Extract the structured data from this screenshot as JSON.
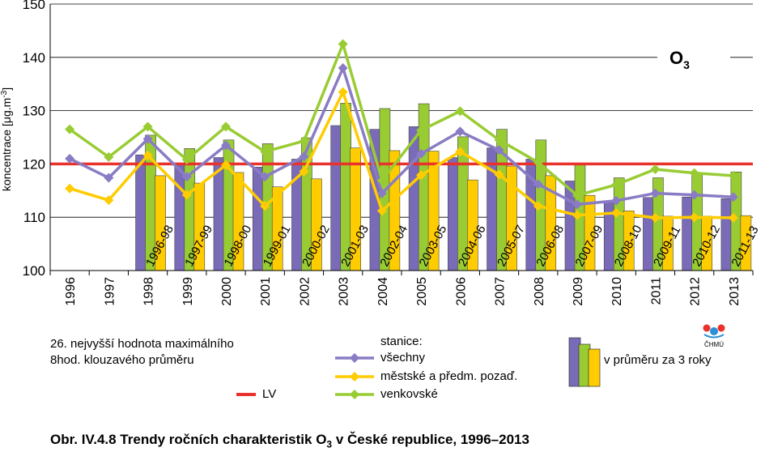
{
  "chart_data": {
    "type": "bar+line",
    "title": "O",
    "title_subscript": "3",
    "ylabel": "koncentrace [μg.m-3]",
    "ylabel_main": "koncentrace [μg.m",
    "ylabel_sup": "-3",
    "ylabel_end": "]",
    "ylim": [
      100,
      150
    ],
    "yticks": [
      100,
      110,
      120,
      130,
      140,
      150
    ],
    "grid": true,
    "limit_value": 120,
    "years": [
      "1996",
      "1997",
      "1998",
      "1999",
      "2000",
      "2001",
      "2002",
      "2003",
      "2004",
      "2005",
      "2006",
      "2007",
      "2008",
      "2009",
      "2010",
      "2011",
      "2012",
      "2013"
    ],
    "series": [
      {
        "name": "všechny",
        "kind": "line",
        "color": "#8A7CC4",
        "marker": "diamond",
        "values": [
          121,
          117.4,
          124.7,
          117.6,
          123.5,
          117.6,
          121.4,
          138,
          114.5,
          121.9,
          126.1,
          122.6,
          116.2,
          112.4,
          113.1,
          114.5,
          114.2,
          113.8
        ]
      },
      {
        "name": "městské a předm. pozaď.",
        "kind": "line",
        "color": "#FFCC00",
        "marker": "diamond",
        "values": [
          115.4,
          113.2,
          121.6,
          114.2,
          119.8,
          112.1,
          118.6,
          133.5,
          111.2,
          117.9,
          122.3,
          118,
          112.1,
          110.4,
          110.8,
          109.9,
          110,
          109.9
        ]
      },
      {
        "name": "venkovské",
        "kind": "line",
        "color": "#99CC33",
        "marker": "diamond",
        "values": [
          126.5,
          121.3,
          127,
          120.8,
          127,
          122.3,
          124.3,
          142.5,
          116.9,
          126.3,
          129.9,
          124.5,
          120.3,
          114.1,
          116.1,
          119,
          118.3,
          117.8
        ]
      }
    ],
    "bar_periods": [
      "1996-98",
      "1997-99",
      "1998-00",
      "1999-01",
      "2000-02",
      "2001-03",
      "2002-04",
      "2003-05",
      "2004-06",
      "2005-07",
      "2006-08",
      "2007-09",
      "2008-10",
      "2009-11",
      "2010-12",
      "2011-13"
    ],
    "bar_series": [
      {
        "name": "všechny",
        "color": "#7A6BB8",
        "values": [
          121.7,
          119.8,
          121.2,
          119.4,
          120.9,
          127.2,
          126.5,
          127,
          121.2,
          123,
          120.9,
          116.8,
          113.1,
          113.7,
          113.8,
          113.5
        ]
      },
      {
        "name": "venkovské",
        "color": "#99CC33",
        "values": [
          125.4,
          122.9,
          124.5,
          123.8,
          124.9,
          131.4,
          130.4,
          131.3,
          125.1,
          126.5,
          124.5,
          119.8,
          117.4,
          117.4,
          118.2,
          118.5
        ]
      },
      {
        "name": "městské a předm. pozaď.",
        "color": "#FFCC00",
        "values": [
          117.8,
          116.4,
          118.4,
          115.7,
          117.2,
          123,
          122.5,
          122.4,
          117,
          119.6,
          117.8,
          114.1,
          111.2,
          110.2,
          110.2,
          110.3
        ]
      }
    ]
  },
  "notes": {
    "statistic_line1": "26. nejvyšší hodnota maximálního",
    "statistic_line2": "8hod. klouzavého průměru",
    "lv_label": "LV",
    "stations_header": "stanice:",
    "legend_all": "všechny",
    "legend_urban": "městské a předm. pozaď.",
    "legend_rural": "venkovské",
    "legend_bars": "v průměru za 3 roky",
    "logo_text": "ČHMÚ"
  },
  "colors": {
    "lv_line": "#E8322B",
    "grid": "#000000",
    "all": "#8A7CC4",
    "all_bar": "#7A6BB8",
    "urban": "#FFCC00",
    "rural": "#99CC33"
  },
  "caption": {
    "prefix": "Obr. IV.4.8  Trendy ročních charakteristik O",
    "sub": "3",
    "suffix": " v České republice, 1996–2013"
  }
}
